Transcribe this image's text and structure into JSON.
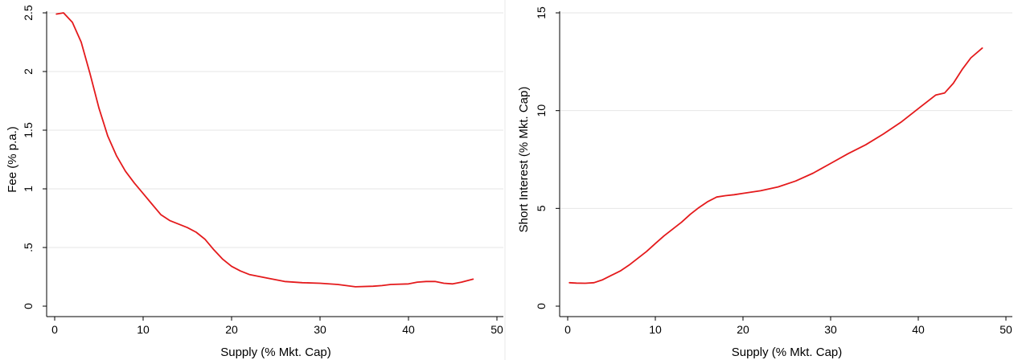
{
  "chart_data": [
    {
      "type": "line",
      "xlabel": "Supply (% Mkt. Cap)",
      "ylabel": "Fee (% p.a.)",
      "xlim": [
        0,
        50
      ],
      "ylim": [
        0,
        2.5
      ],
      "xticks": [
        0,
        10,
        20,
        30,
        40,
        50
      ],
      "yticks": [
        0,
        0.5,
        1,
        1.5,
        2,
        2.5
      ],
      "xtick_labels": [
        "0",
        "10",
        "20",
        "30",
        "40",
        "50"
      ],
      "ytick_labels": [
        "0",
        ".5",
        "1",
        "1.5",
        "2",
        "2.5"
      ],
      "grid": "horizontal",
      "series": [
        {
          "color": "#e41a1c",
          "x": [
            0.2,
            1,
            2,
            3,
            4,
            5,
            6,
            7,
            8,
            9,
            10,
            11,
            12,
            13,
            14,
            15,
            16,
            17,
            18,
            19,
            20,
            21,
            22,
            24,
            26,
            28,
            30,
            32,
            34,
            36,
            37,
            38,
            40,
            41,
            42,
            43,
            44,
            45,
            46,
            47.3
          ],
          "y": [
            2.49,
            2.5,
            2.42,
            2.25,
            1.98,
            1.69,
            1.45,
            1.28,
            1.15,
            1.05,
            0.96,
            0.87,
            0.78,
            0.73,
            0.7,
            0.67,
            0.63,
            0.57,
            0.48,
            0.4,
            0.34,
            0.3,
            0.27,
            0.24,
            0.21,
            0.2,
            0.195,
            0.185,
            0.165,
            0.17,
            0.175,
            0.185,
            0.19,
            0.205,
            0.21,
            0.21,
            0.195,
            0.19,
            0.205,
            0.23
          ]
        }
      ]
    },
    {
      "type": "line",
      "xlabel": "Supply (% Mkt. Cap)",
      "ylabel": "Short Interest (% Mkt. Cap)",
      "xlim": [
        0,
        50
      ],
      "ylim": [
        0,
        15
      ],
      "xticks": [
        0,
        10,
        20,
        30,
        40,
        50
      ],
      "yticks": [
        0,
        5,
        10,
        15
      ],
      "xtick_labels": [
        "0",
        "10",
        "20",
        "30",
        "40",
        "50"
      ],
      "ytick_labels": [
        "0",
        "5",
        "10",
        "15"
      ],
      "grid": "horizontal",
      "series": [
        {
          "color": "#e41a1c",
          "x": [
            0.2,
            1,
            2,
            3,
            4,
            5,
            6,
            7,
            8,
            9,
            10,
            11,
            12,
            13,
            14,
            15,
            16,
            17,
            18,
            19,
            20,
            22,
            24,
            26,
            28,
            30,
            32,
            34,
            36,
            38,
            40,
            42,
            43,
            44,
            45,
            46,
            47.3
          ],
          "y": [
            1.2,
            1.18,
            1.17,
            1.2,
            1.35,
            1.58,
            1.8,
            2.1,
            2.45,
            2.8,
            3.2,
            3.6,
            3.95,
            4.3,
            4.7,
            5.05,
            5.35,
            5.58,
            5.65,
            5.7,
            5.77,
            5.9,
            6.1,
            6.4,
            6.8,
            7.3,
            7.8,
            8.25,
            8.8,
            9.4,
            10.1,
            10.8,
            10.9,
            11.4,
            12.1,
            12.7,
            13.2
          ]
        }
      ]
    }
  ]
}
